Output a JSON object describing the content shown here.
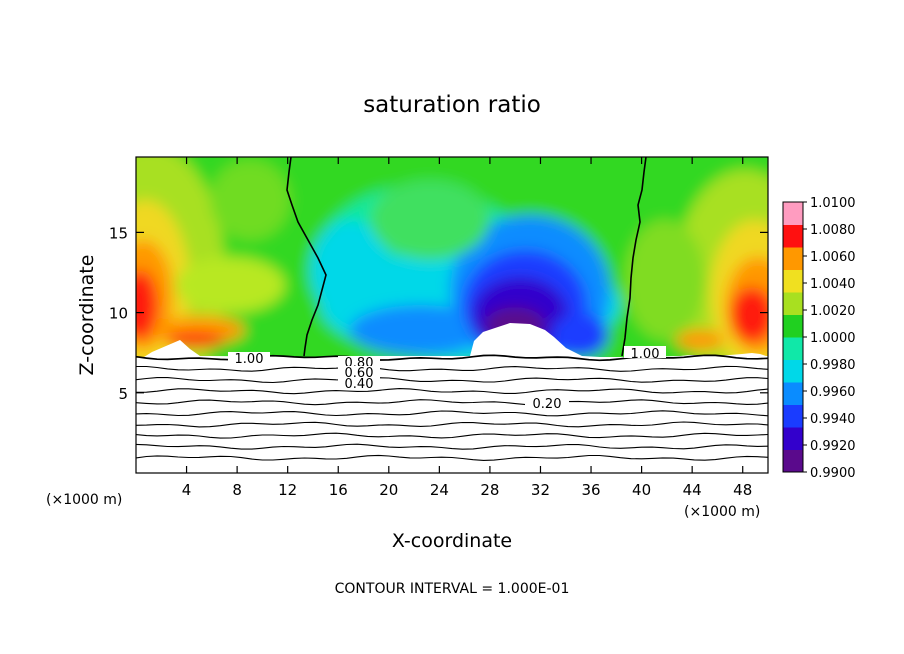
{
  "chart_data": {
    "type": "heatmap",
    "title": "saturation ratio",
    "xlabel": "X-coordinate",
    "ylabel": "Z-coordinate",
    "x_unit_left": "(×1000 m)",
    "x_unit_right": "(×1000 m)",
    "footnote": "CONTOUR INTERVAL = 1.000E-01",
    "xlim": [
      0,
      50
    ],
    "ylim": [
      0,
      19.7
    ],
    "x_ticks": [
      4,
      8,
      12,
      16,
      20,
      24,
      28,
      32,
      36,
      40,
      44,
      48
    ],
    "y_ticks": [
      5,
      10,
      15
    ],
    "colorbar": {
      "min": 0.99,
      "max": 1.01,
      "ticks": [
        "1.0100",
        "1.0080",
        "1.0060",
        "1.0040",
        "1.0020",
        "1.0000",
        "0.9980",
        "0.9960",
        "0.9940",
        "0.9920",
        "0.9900"
      ],
      "colors": [
        "#5a0a8c",
        "#3300cc",
        "#1a3cff",
        "#0a8cff",
        "#00d8e8",
        "#10e8a8",
        "#20d020",
        "#a8e020",
        "#f0e020",
        "#ff9800",
        "#ff1010",
        "#ff9cc0"
      ]
    },
    "contour_labels": [
      "1.00",
      "1.00",
      "0.80",
      "0.60",
      "0.40",
      "0.20"
    ],
    "contour_levels": [
      0.1,
      0.2,
      0.3,
      0.4,
      0.5,
      0.6,
      0.7,
      0.8,
      0.9,
      1.0
    ],
    "saturation_boundary_z": 7.3
  }
}
